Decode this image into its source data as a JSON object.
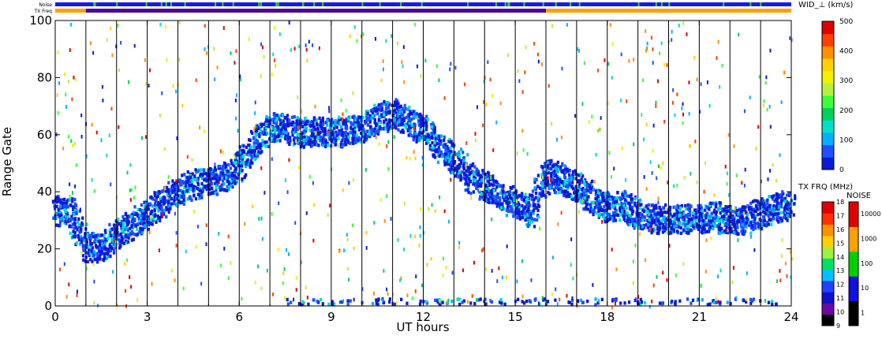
{
  "chart_data": {
    "type": "scatter",
    "xlabel": "UT hours",
    "ylabel": "Range Gate",
    "xlim": [
      0,
      24
    ],
    "ylim": [
      0,
      100
    ],
    "x_ticks": [
      "0",
      "3",
      "6",
      "9",
      "12",
      "15",
      "18",
      "21",
      "24"
    ],
    "y_ticks": [
      "0",
      "20",
      "40",
      "60",
      "80",
      "100"
    ],
    "x_tick_values": [
      0,
      3,
      6,
      9,
      12,
      15,
      18,
      21,
      24
    ],
    "y_tick_values": [
      0,
      20,
      40,
      60,
      80,
      100
    ],
    "vertical_lines_ut": [
      1,
      2,
      3,
      4,
      5,
      6,
      7,
      8,
      9,
      10,
      11,
      12,
      13,
      14,
      15,
      16,
      17,
      18,
      19,
      20,
      21,
      22,
      23
    ],
    "top_bars": {
      "noise_label": "Noise",
      "txfreq_label": "TX Freq"
    },
    "width_colorbar": {
      "title": "WID_⊥ (km/s)",
      "ticks": [
        "500",
        "400",
        "300",
        "200",
        "100",
        "0"
      ],
      "tick_values": [
        500,
        400,
        300,
        200,
        100,
        0
      ],
      "colors": [
        "#0a1bd6",
        "#1f4fff",
        "#00b0ff",
        "#00e0c8",
        "#00d060",
        "#3aff3a",
        "#b8f040",
        "#f0f000",
        "#ffd000",
        "#ff9000",
        "#ff4000",
        "#e00000"
      ]
    },
    "txfreq_colorbar": {
      "title": "TX FRQ (MHz)",
      "ticks": [
        "18",
        "17",
        "16",
        "15",
        "14",
        "13",
        "12",
        "11",
        "10",
        "9"
      ],
      "colors": [
        "#000000",
        "#6a0aa0",
        "#1010c8",
        "#2040ff",
        "#00c0ff",
        "#00e060",
        "#a0f040",
        "#ffd000",
        "#ff9000",
        "#ff3000",
        "#e00000"
      ]
    },
    "noise_colorbar": {
      "title": "NOISE",
      "ticks": [
        "10000",
        "1000",
        "100",
        "10",
        "1"
      ],
      "colors": [
        "#000000",
        "#1010e0",
        "#00d000",
        "#ffa000",
        "#e00000"
      ]
    },
    "series": [
      {
        "band": "main_echo",
        "points": [
          [
            0.0,
            34
          ],
          [
            0.5,
            33
          ],
          [
            1.0,
            21
          ],
          [
            1.5,
            21
          ],
          [
            2.0,
            26
          ],
          [
            2.5,
            29
          ],
          [
            3.0,
            33
          ],
          [
            3.5,
            37
          ],
          [
            4.0,
            41
          ],
          [
            4.5,
            43
          ],
          [
            5.0,
            44
          ],
          [
            5.5,
            45
          ],
          [
            6.0,
            50
          ],
          [
            6.5,
            58
          ],
          [
            7.0,
            63
          ],
          [
            7.5,
            63
          ],
          [
            8.0,
            61
          ],
          [
            8.5,
            62
          ],
          [
            9.0,
            61
          ],
          [
            9.5,
            62
          ],
          [
            10.0,
            63
          ],
          [
            10.5,
            66
          ],
          [
            11.0,
            68
          ],
          [
            11.5,
            65
          ],
          [
            12.0,
            62
          ],
          [
            12.5,
            56
          ],
          [
            13.0,
            52
          ],
          [
            13.5,
            46
          ],
          [
            14.0,
            42
          ],
          [
            14.5,
            39
          ],
          [
            15.0,
            36
          ],
          [
            15.5,
            33
          ],
          [
            16.0,
            47
          ],
          [
            16.5,
            45
          ],
          [
            17.0,
            42
          ],
          [
            17.5,
            38
          ],
          [
            18.0,
            35
          ],
          [
            18.5,
            36
          ],
          [
            19.0,
            32
          ],
          [
            19.5,
            31
          ],
          [
            20.0,
            31
          ],
          [
            20.5,
            31
          ],
          [
            21.0,
            31
          ],
          [
            21.5,
            32
          ],
          [
            22.0,
            30
          ],
          [
            22.5,
            31
          ],
          [
            23.0,
            33
          ],
          [
            23.5,
            35
          ],
          [
            24.0,
            36
          ]
        ]
      },
      {
        "band": "near_range",
        "points": [
          [
            8.0,
            1
          ],
          [
            9.0,
            1
          ],
          [
            10.0,
            1
          ],
          [
            11.0,
            1
          ],
          [
            12.0,
            1
          ],
          [
            13.0,
            1
          ],
          [
            14.0,
            1
          ],
          [
            15.0,
            1
          ],
          [
            16.0,
            1
          ],
          [
            17.0,
            1
          ],
          [
            18.0,
            1
          ],
          [
            19.0,
            1
          ],
          [
            20.0,
            1
          ],
          [
            21.0,
            1
          ],
          [
            22.0,
            1
          ],
          [
            23.0,
            1
          ]
        ]
      }
    ]
  }
}
